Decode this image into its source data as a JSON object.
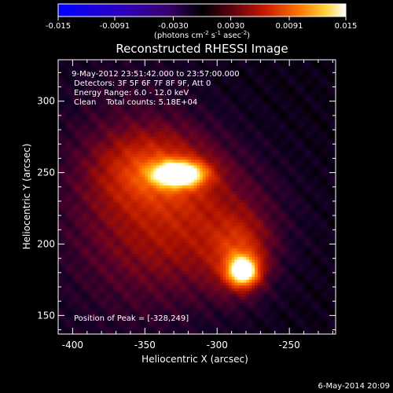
{
  "chart_data": {
    "type": "heatmap",
    "title": "Reconstructed RHESSI Image",
    "xlabel": "Heliocentric X (arcsec)",
    "ylabel": "Heliocentric Y (arcsec)",
    "xlim": [
      -410,
      -218
    ],
    "ylim": [
      137,
      329
    ],
    "x_ticks": [
      -400,
      -350,
      -300,
      -250
    ],
    "y_ticks": [
      150,
      200,
      250,
      300
    ],
    "colorbar": {
      "min": -0.015,
      "max": 0.015,
      "ticks": [
        "-0.015",
        "-0.0091",
        "-0.0030",
        "0.0030",
        "0.0091",
        "0.015"
      ],
      "tick_values": [
        -0.015,
        -0.0091,
        -0.003,
        0.003,
        0.0091,
        0.015
      ],
      "unit_prefix": "(photons cm",
      "unit_exp1": "-2",
      "unit_mid": " s",
      "unit_exp2": "-1",
      "unit_mid2": " asec",
      "unit_exp3": "-2",
      "unit_suffix": ")"
    },
    "annotations": [
      " 9-May-2012 23:51:42.000 to 23:57:00.000",
      "Detectors: 3F 5F 6F 7F 8F 9F, Att 0",
      "Energy Range: 6.0 - 12.0 keV",
      "Clean    Total counts: 5.18E+04"
    ],
    "peak_label": "Position of Peak = [-328,249]",
    "sources": [
      {
        "x": -326,
        "y": 249,
        "sigma_x": 12,
        "sigma_y": 6,
        "amplitude": 1.0
      },
      {
        "x": -345,
        "y": 252,
        "sigma_x": 25,
        "sigma_y": 18,
        "amplitude": 0.32
      },
      {
        "x": -282,
        "y": 181,
        "sigma_x": 7,
        "sigma_y": 7,
        "amplitude": 0.95
      },
      {
        "x": -285,
        "y": 192,
        "sigma_x": 14,
        "sigma_y": 18,
        "amplitude": 0.32
      },
      {
        "x": -315,
        "y": 215,
        "sigma_x": 38,
        "sigma_y": 32,
        "amplitude": 0.24
      },
      {
        "x": -360,
        "y": 230,
        "sigma_x": 40,
        "sigma_y": 60,
        "amplitude": 0.16
      }
    ],
    "footer_date": "6-May-2014 20:09"
  }
}
